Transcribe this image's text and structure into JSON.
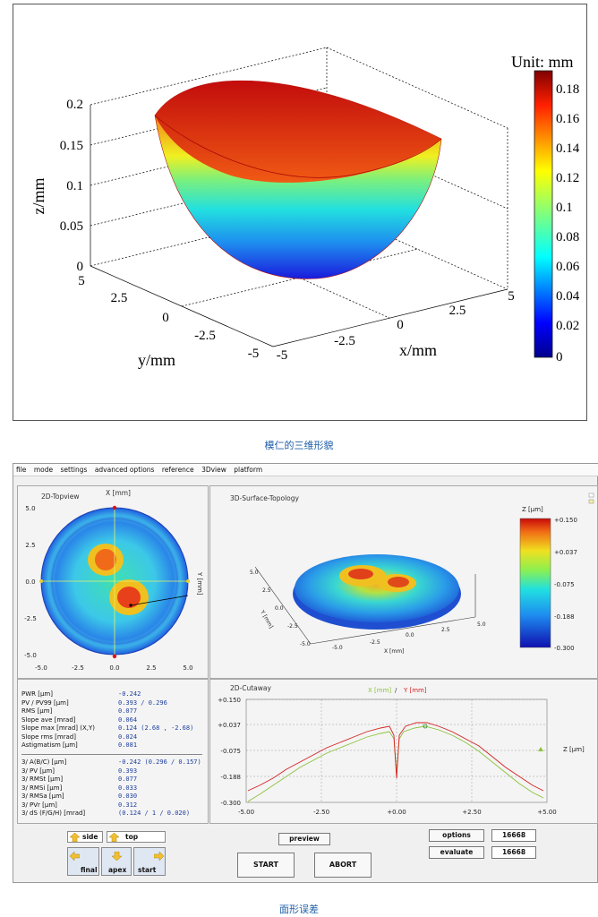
{
  "figure1": {
    "unit_label": "Unit: mm",
    "colorbar_ticks": [
      "0.18",
      "0.16",
      "0.14",
      "0.12",
      "0.1",
      "0.08",
      "0.06",
      "0.04",
      "0.02",
      "0"
    ],
    "z_label": "z/mm",
    "x_label": "x/mm",
    "y_label": "y/mm",
    "z_ticks": [
      "0.2",
      "0.15",
      "0.1",
      "0.05",
      "0"
    ],
    "x_ticks": [
      "-5",
      "-2.5",
      "0",
      "2.5",
      "5"
    ],
    "y_ticks": [
      "5",
      "2.5",
      "0",
      "-2.5",
      "-5"
    ],
    "caption": "模仁的三维形貌"
  },
  "menu": [
    "file",
    "mode",
    "settings",
    "advanced options",
    "reference",
    "3Dview",
    "platform"
  ],
  "topview": {
    "title": "2D-Topview",
    "x_axis": "X [mm]",
    "y_axis": "Y [mm]",
    "left_ticks": [
      "5.0",
      "2.5",
      "0.0",
      "-2.5",
      "-5.0"
    ],
    "bottom_ticks": [
      "-5.0",
      "-2.5",
      "0.0",
      "2.5",
      "5.0"
    ]
  },
  "surface": {
    "title": "3D-Surface-Topology",
    "z_label": "Z [µm]",
    "colorbar_ticks": [
      "+0.150",
      "+0.037",
      "-0.075",
      "-0.188",
      "-0.300"
    ],
    "y_axis_label": "Y [mm]",
    "x_axis_label": "X [mm]",
    "y_ticks": [
      "5.0",
      "2.5",
      "0.0",
      "-2.5",
      "-5.0"
    ],
    "x_ticks": [
      "-5.0",
      "-2.5",
      "0.0",
      "2.5",
      "5.0"
    ]
  },
  "stats": {
    "rows": [
      {
        "label": "PWR [µm]",
        "value": "-0.242"
      },
      {
        "label": "PV / PV99 [µm]",
        "value": "0.393 / 0.296"
      },
      {
        "label": "RMS [µm]",
        "value": "0.077"
      },
      {
        "label": "Slope ave [mrad]",
        "value": "0.064"
      },
      {
        "label": "Slope max [mrad] (X,Y)",
        "value": "0.124  (2.68 , -2.68)"
      },
      {
        "label": "Slope rms [mrad]",
        "value": "0.024"
      },
      {
        "label": "Astigmatism [µm]",
        "value": "0.081"
      }
    ],
    "rows2": [
      {
        "label": "3/ A(B/C) [µm]",
        "value": "-0.242 (0.296 / 0.157)"
      },
      {
        "label": "3/ PV [µm]",
        "value": "0.393"
      },
      {
        "label": "3/ RMSt [µm]",
        "value": "0.077"
      },
      {
        "label": "3/ RMSi [µm]",
        "value": "0.033"
      },
      {
        "label": "3/ RMSa [µm]",
        "value": "0.030"
      },
      {
        "label": "3/ PVr [µm]",
        "value": "0.312"
      },
      {
        "label": "3/ dS (F/G/H) [mrad]",
        "value": "(0.124 / 1 / 0.020)"
      }
    ]
  },
  "cutaway": {
    "title": "2D-Cutaway",
    "legend_x": "X [mm]",
    "legend_sep": "/",
    "legend_y": "Y [mm]",
    "z_label": "Z [µm]",
    "y_ticks": [
      "+0.150",
      "+0.037",
      "-0.075",
      "-0.188",
      "-0.300"
    ],
    "x_ticks": [
      "-5.00",
      "-2.50",
      "+0.00",
      "+2.50",
      "+5.00"
    ],
    "colors": {
      "x": "#8cc23c",
      "y": "#d42020"
    }
  },
  "controls": {
    "side": "side",
    "top": "top",
    "final": "final",
    "apex": "apex",
    "start_tile": "start",
    "preview": "preview",
    "start": "START",
    "abort": "ABORT",
    "options": "options",
    "options_value": "16668",
    "evaluate": "evaluate",
    "evaluate_value": "16668"
  },
  "caption2": "面形误差"
}
